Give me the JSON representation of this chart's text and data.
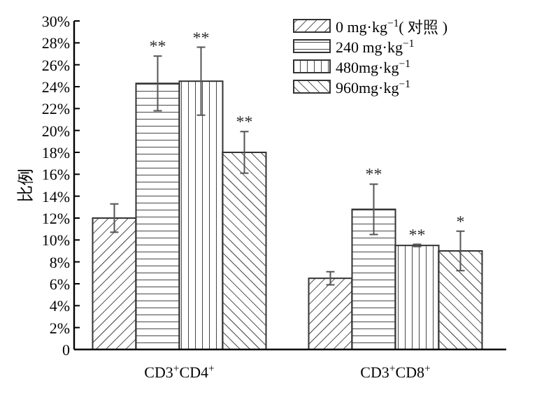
{
  "chart_data": {
    "type": "bar",
    "ylabel": "比例",
    "categories": [
      "CD3$^{+}$CD4$^{+}$",
      "CD3$^{+}$CD8$^{+}$"
    ],
    "series": [
      {
        "name": "0 mg·kg$^{−1}$( 对照 )",
        "color": "#333333",
        "values": [
          12.0,
          6.5
        ],
        "errors": [
          1.3,
          0.6
        ]
      },
      {
        "name": "240 mg·kg$^{−1}$",
        "color": "#333333",
        "values": [
          24.3,
          12.8
        ],
        "errors": [
          2.5,
          2.3
        ]
      },
      {
        "name": "480mg·kg$^{−1}$",
        "color": "#333333",
        "values": [
          24.5,
          9.5
        ],
        "errors": [
          3.1,
          0.1
        ]
      },
      {
        "name": "960mg·kg$^{−1}$",
        "color": "#333333",
        "values": [
          18.0,
          9.0
        ],
        "errors": [
          1.9,
          1.8
        ]
      }
    ],
    "ylim": [
      0,
      30
    ],
    "yticks": [
      {
        "value": 0,
        "label": "0"
      },
      {
        "value": 2,
        "label": "2%"
      },
      {
        "value": 4,
        "label": "4%"
      },
      {
        "value": 6,
        "label": "6%"
      },
      {
        "value": 8,
        "label": "8%"
      },
      {
        "value": 10,
        "label": "10%"
      },
      {
        "value": 12,
        "label": "12%"
      },
      {
        "value": 14,
        "label": "14%"
      },
      {
        "value": 16,
        "label": "16%"
      },
      {
        "value": 18,
        "label": "18%"
      },
      {
        "value": 20,
        "label": "20%"
      },
      {
        "value": 22,
        "label": "22%"
      },
      {
        "value": 24,
        "label": "24%"
      },
      {
        "value": 26,
        "label": "26%"
      },
      {
        "value": 28,
        "label": "28%"
      },
      {
        "value": 30,
        "label": "30%"
      }
    ],
    "annotations": [
      "**",
      "**",
      "**",
      "**",
      "**",
      "*"
    ],
    "grid": false,
    "legend": "top right"
  }
}
